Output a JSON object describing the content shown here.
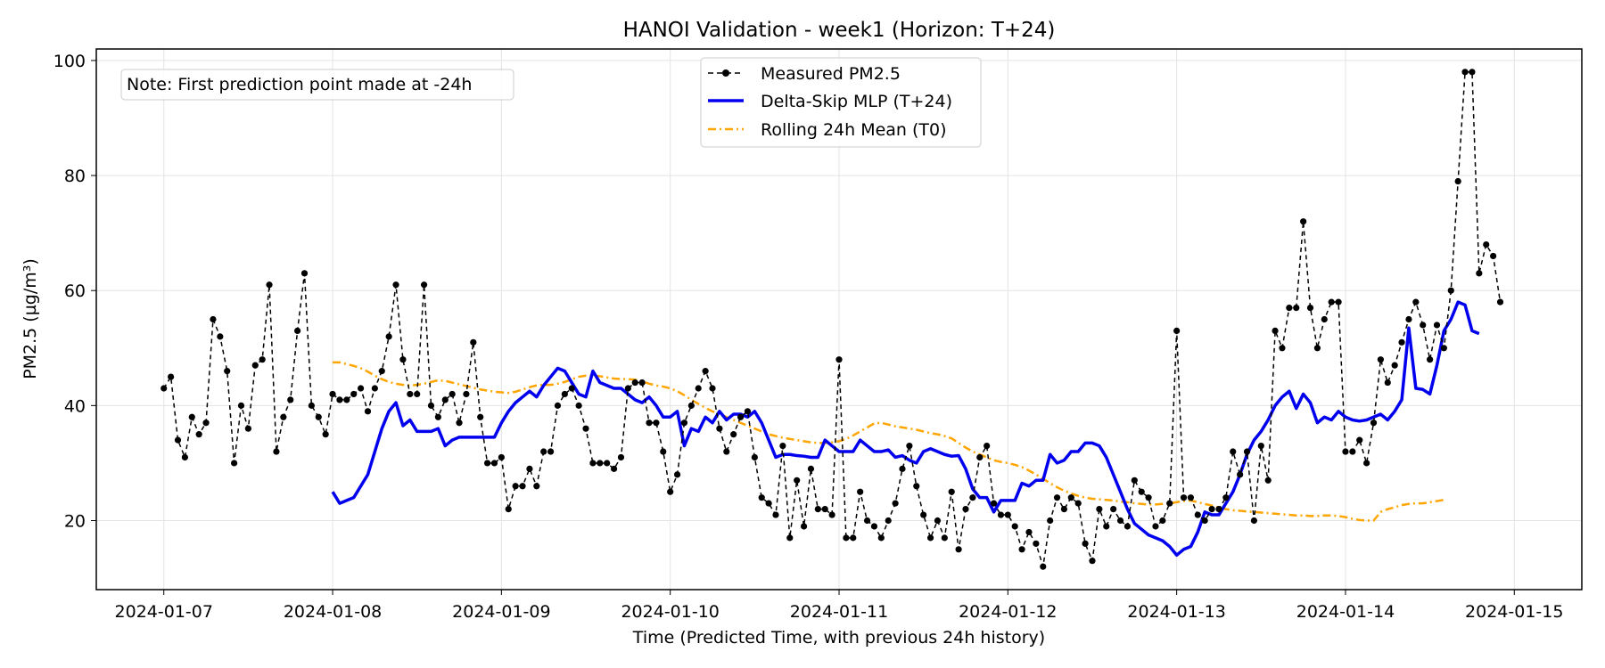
{
  "chart_data": {
    "type": "line",
    "title": "HANOI Validation - week1 (Horizon: T+24)",
    "xlabel": "Time (Predicted Time, with previous 24h history)",
    "ylabel": "PM2.5 (µg/m³)",
    "xlim": [
      "2024-01-06 14:24",
      "2024-01-15 09:36"
    ],
    "ylim": [
      8,
      102
    ],
    "xticks": [
      "2024-01-07",
      "2024-01-08",
      "2024-01-09",
      "2024-01-10",
      "2024-01-11",
      "2024-01-12",
      "2024-01-13",
      "2024-01-14",
      "2024-01-15"
    ],
    "yticks": [
      20,
      40,
      60,
      80,
      100
    ],
    "grid": true,
    "legend_position": "top-center",
    "annotation": "Note: First prediction point made at -24h",
    "series": [
      {
        "name": "Measured PM2.5",
        "color": "#000000",
        "style": "dashed-with-dots",
        "start": "2024-01-07 00:00",
        "step_hours": 1,
        "values": [
          43,
          45,
          34,
          31,
          38,
          35,
          37,
          55,
          52,
          46,
          30,
          40,
          36,
          47,
          48,
          61,
          32,
          38,
          41,
          53,
          63,
          40,
          38,
          35,
          42,
          41,
          41,
          42,
          43,
          39,
          43,
          46,
          52,
          61,
          48,
          42,
          42,
          61,
          40,
          38,
          41,
          42,
          37,
          42,
          51,
          38,
          30,
          30,
          31,
          22,
          26,
          26,
          29,
          26,
          32,
          32,
          40,
          42,
          43,
          40,
          36,
          30,
          30,
          30,
          29,
          31,
          43,
          44,
          44,
          37,
          37,
          32,
          25,
          28,
          37,
          40,
          43,
          46,
          43,
          36,
          32,
          35,
          38,
          39,
          31,
          24,
          23,
          21,
          33,
          17,
          27,
          19,
          29,
          22,
          22,
          21,
          48,
          17,
          17,
          25,
          20,
          19,
          17,
          20,
          23,
          29,
          33,
          26,
          21,
          17,
          20,
          17,
          25,
          15,
          22,
          24,
          31,
          33,
          23,
          21,
          21,
          19,
          15,
          18,
          16,
          12,
          20,
          24,
          22,
          24,
          23,
          16,
          13,
          22,
          19,
          22,
          20,
          19,
          27,
          25,
          24,
          19,
          20,
          23,
          53,
          24,
          24,
          21,
          20,
          22,
          22,
          24,
          32,
          28,
          32,
          20,
          33,
          27,
          53,
          50,
          57,
          57,
          72,
          57,
          50,
          55,
          58,
          58,
          32,
          32,
          34,
          30,
          37,
          48,
          44,
          47,
          51,
          55,
          58,
          54,
          48,
          54,
          50,
          60,
          79,
          98,
          98,
          63,
          68,
          66,
          58
        ]
      },
      {
        "name": "Delta-Skip MLP (T+24)",
        "color": "#0000ee",
        "style": "solid",
        "start": "2024-01-08 00:00",
        "step_hours": 1,
        "values": [
          25,
          23,
          23.5,
          24,
          26,
          28,
          32,
          36,
          39,
          40.5,
          36.5,
          37.5,
          35.5,
          35.5,
          35.5,
          36,
          33,
          34,
          34.5,
          34.5,
          34.5,
          34.5,
          34.5,
          34.5,
          37,
          39,
          40.5,
          41.5,
          42.5,
          41.5,
          43.5,
          45,
          46.5,
          46,
          44,
          42,
          41.5,
          46,
          44,
          43.5,
          43,
          43,
          42,
          41,
          40.5,
          41.5,
          40,
          38,
          38,
          39,
          33,
          36,
          35.5,
          38,
          37,
          39,
          37.5,
          38.5,
          38.5,
          38,
          39,
          37,
          34,
          31,
          31.5,
          31.5,
          31.3,
          31.2,
          31,
          31,
          34,
          33,
          32,
          32,
          32,
          34,
          33,
          32,
          32,
          32.3,
          31,
          31.3,
          30.5,
          30,
          32,
          32.5,
          32,
          31.5,
          31.2,
          31.3,
          29,
          25.5,
          24,
          24,
          21.5,
          23.5,
          23.5,
          23.5,
          26.5,
          26,
          27,
          27,
          31.5,
          30,
          30.5,
          32,
          32,
          33.5,
          33.5,
          33,
          31,
          28,
          25,
          22,
          19.5,
          18.5,
          17.5,
          17,
          16.5,
          15.5,
          14,
          15,
          15.5,
          18,
          21.5,
          21,
          21,
          23,
          25,
          28,
          31.5,
          34,
          35.5,
          37.5,
          40,
          41.5,
          42.5,
          39.5,
          42,
          40.5,
          37,
          38,
          37.5,
          39,
          38,
          37.5,
          37.3,
          37.5,
          38,
          38.5,
          37.5,
          39,
          41,
          53.5,
          43,
          42.8,
          42,
          47,
          53,
          55,
          58,
          57.5,
          53,
          52.5
        ]
      },
      {
        "name": "Rolling 24h Mean (T0)",
        "color": "#ffa500",
        "style": "dash-dot",
        "start": "2024-01-08 00:00",
        "step_hours": 1,
        "values": [
          47.5,
          47.5,
          47.2,
          46.9,
          46.5,
          45.9,
          45.2,
          44.6,
          44.1,
          43.8,
          43.6,
          43.5,
          43.6,
          43.8,
          44.1,
          44.4,
          44.3,
          44.0,
          43.7,
          43.4,
          43.1,
          42.8,
          42.6,
          42.4,
          42.3,
          42.2,
          42.4,
          42.8,
          43.2,
          43.5,
          43.6,
          43.6,
          43.8,
          44.1,
          44.6,
          45.0,
          45.2,
          45.2,
          45.1,
          44.9,
          44.7,
          44.6,
          44.6,
          44.5,
          44.2,
          43.8,
          43.5,
          43.3,
          43.0,
          42.5,
          41.8,
          41.0,
          40.3,
          39.6,
          39.0,
          38.5,
          38.0,
          37.5,
          37.0,
          36.5,
          36.0,
          35.5,
          35.0,
          34.7,
          34.4,
          34.2,
          34.0,
          33.8,
          33.6,
          33.5,
          33.5,
          33.6,
          33.8,
          34.2,
          34.8,
          35.5,
          36.2,
          36.9,
          37.0,
          36.7,
          36.4,
          36.2,
          36.0,
          35.8,
          35.5,
          35.2,
          35.0,
          34.7,
          34.3,
          33.5,
          32.7,
          32.0,
          31.5,
          31.0,
          30.5,
          30.2,
          30.0,
          29.7,
          29.3,
          28.7,
          28.0,
          27.3,
          26.5,
          25.8,
          25.2,
          24.7,
          24.3,
          24.0,
          23.8,
          23.7,
          23.6,
          23.5,
          23.3,
          23.2,
          23.0,
          22.9,
          22.8,
          22.8,
          22.9,
          23.0,
          23.2,
          23.4,
          23.5,
          23.2,
          22.9,
          22.6,
          22.3,
          22.0,
          21.8,
          21.7,
          21.6,
          21.5,
          21.4,
          21.3,
          21.2,
          21.1,
          21.0,
          20.9,
          20.9,
          20.8,
          20.8,
          20.9,
          20.9,
          20.8,
          20.6,
          20.3,
          20.1,
          20.0,
          20.0,
          21.5,
          22.0,
          22.3,
          22.7,
          22.9,
          23.0,
          23.0,
          23.2,
          23.4,
          23.6
        ]
      }
    ]
  }
}
